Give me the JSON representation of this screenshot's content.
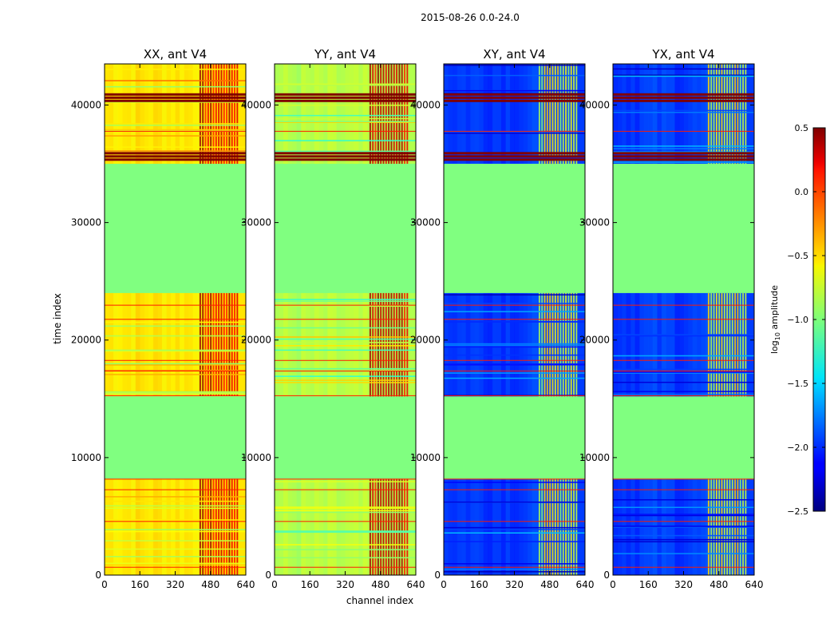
{
  "chart_data": {
    "type": "heatmap",
    "suptitle": "2015-08-26 0.0-24.0",
    "xlabel": "channel index",
    "ylabel": "time index",
    "xlim": [
      0,
      640
    ],
    "ylim": [
      0,
      43500
    ],
    "xticks": [
      0,
      160,
      320,
      480,
      640
    ],
    "yticks": [
      0,
      10000,
      20000,
      30000,
      40000
    ],
    "colorbar": {
      "label": "log10 amplitude",
      "label_main": "log",
      "label_sub": "10",
      "label_rest": " amplitude",
      "range": [
        -2.5,
        0.5
      ],
      "ticks": [
        0.5,
        0.0,
        -0.5,
        -1.0,
        -1.5,
        -2.0,
        -2.5
      ],
      "tick_labels": [
        "0.5",
        "0.0",
        "−0.5",
        "−1.0",
        "−1.5",
        "−2.0",
        "−2.5"
      ]
    },
    "flag_level": -1.0,
    "flagged_time_ranges": [
      [
        8200,
        15200
      ],
      [
        24000,
        35000
      ]
    ],
    "high_rfi_time_ranges": [
      [
        35300,
        36000
      ],
      [
        40300,
        41000
      ]
    ],
    "edge_channels_start": 430,
    "panels": [
      {
        "title": "XX, ant V4",
        "base_level": -0.55,
        "spike_level": 0.2,
        "has_ylabel": true,
        "has_xlabel": false
      },
      {
        "title": "YY, ant V4",
        "base_level": -0.85,
        "spike_level": 0.25,
        "has_ylabel": false,
        "has_xlabel": true
      },
      {
        "title": "XY, ant V4",
        "base_level": -1.95,
        "spike_level": -0.7,
        "has_ylabel": false,
        "has_xlabel": false
      },
      {
        "title": "YX, ant V4",
        "base_level": -1.95,
        "spike_level": -0.7,
        "has_ylabel": false,
        "has_xlabel": false
      }
    ]
  }
}
